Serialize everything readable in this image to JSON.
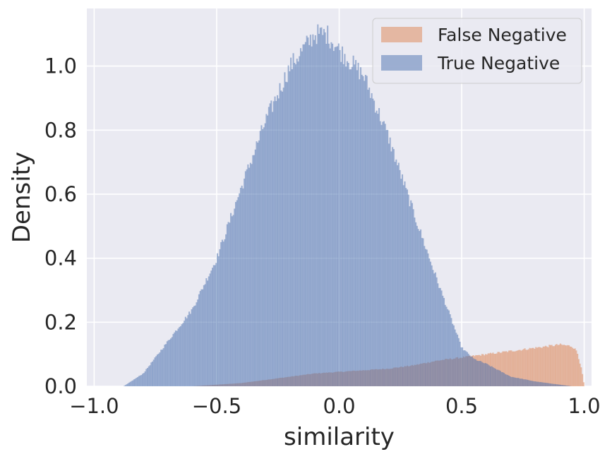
{
  "chart_data": {
    "type": "histogram",
    "title": "",
    "xlabel": "similarity",
    "ylabel": "Density",
    "xlim": [
      -1.03,
      1.03
    ],
    "ylim": [
      0,
      1.18
    ],
    "x_ticks": [
      -1.0,
      -0.5,
      0.0,
      0.5,
      1.0
    ],
    "x_tick_labels": [
      "−1.0",
      "−0.5",
      "0.0",
      "0.5",
      "1.0"
    ],
    "y_ticks": [
      0.0,
      0.2,
      0.4,
      0.6,
      0.8,
      1.0
    ],
    "y_tick_labels": [
      "0.0",
      "0.2",
      "0.4",
      "0.6",
      "0.8",
      "1.0"
    ],
    "grid": true,
    "background_color": "#eaeaf2",
    "grid_color": "#ffffff",
    "legend_position": "top-right",
    "bins": 400,
    "bin_range": [
      -1.0,
      1.0
    ],
    "series": [
      {
        "name": "False Negative",
        "color": "#dd8452",
        "alpha": 0.5,
        "density_profile": {
          "x": [
            -0.6,
            -0.4,
            -0.3,
            -0.2,
            -0.1,
            0.0,
            0.1,
            0.2,
            0.3,
            0.4,
            0.5,
            0.55,
            0.6,
            0.65,
            0.7,
            0.75,
            0.8,
            0.85,
            0.9,
            0.95,
            0.97,
            0.99,
            1.0
          ],
          "y": [
            0.0,
            0.01,
            0.02,
            0.03,
            0.04,
            0.045,
            0.05,
            0.055,
            0.065,
            0.08,
            0.09,
            0.095,
            0.1,
            0.105,
            0.11,
            0.115,
            0.12,
            0.125,
            0.13,
            0.125,
            0.11,
            0.05,
            0.0
          ]
        }
      },
      {
        "name": "True Negative",
        "color": "#4c72b0",
        "alpha": 0.5,
        "density_profile": {
          "x": [
            -0.88,
            -0.8,
            -0.7,
            -0.6,
            -0.5,
            -0.4,
            -0.3,
            -0.2,
            -0.1,
            -0.05,
            0.0,
            0.1,
            0.2,
            0.3,
            0.4,
            0.5,
            0.55,
            0.6,
            0.65,
            0.7,
            0.8,
            0.9,
            0.95
          ],
          "y": [
            0.0,
            0.04,
            0.14,
            0.24,
            0.4,
            0.62,
            0.83,
            1.0,
            1.1,
            1.1,
            1.05,
            0.97,
            0.78,
            0.55,
            0.33,
            0.12,
            0.085,
            0.07,
            0.05,
            0.03,
            0.015,
            0.005,
            0.0
          ]
        }
      }
    ]
  }
}
